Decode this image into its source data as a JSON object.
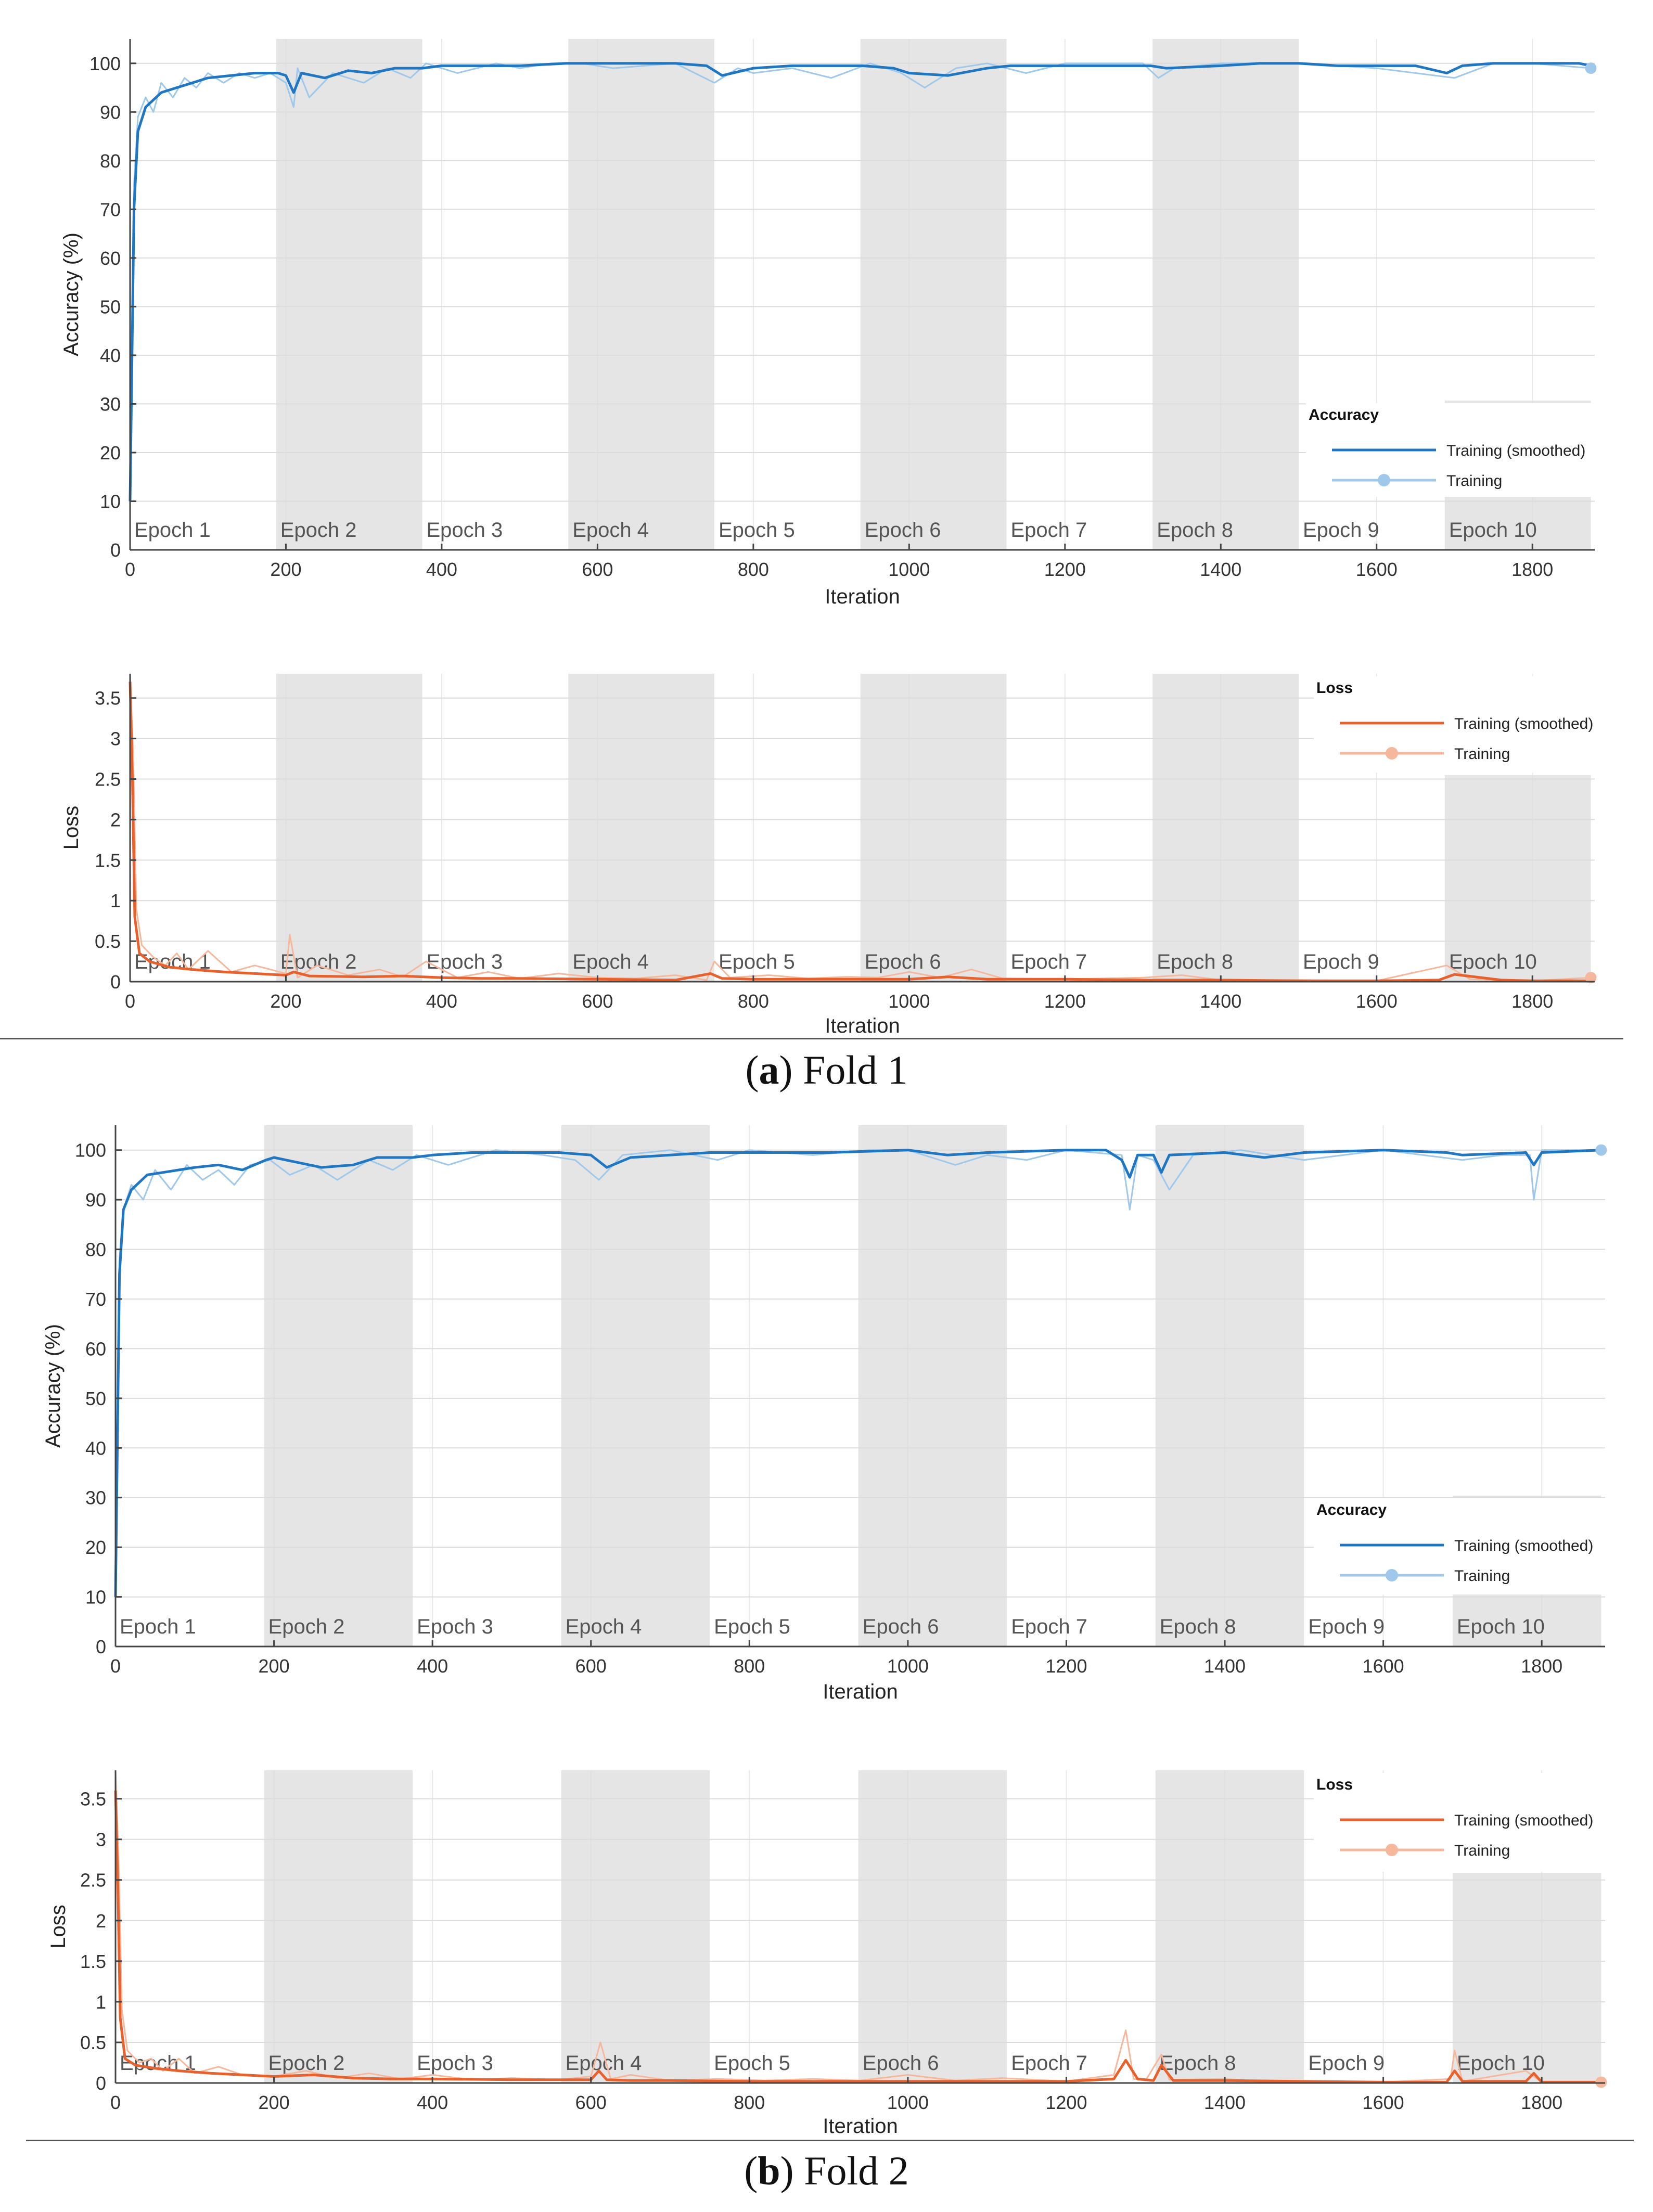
{
  "colors": {
    "accuracy_smoothed": "#1f77c4",
    "accuracy_raw": "#9fc8ea",
    "loss_smoothed": "#e8612c",
    "loss_raw": "#f6b89c",
    "epoch_band": "#e5e5e5",
    "grid": "#dcdcdc"
  },
  "captions": [
    {
      "letter": "a",
      "text": ") Fold 1"
    },
    {
      "letter": "b",
      "text": ") Fold 2"
    }
  ],
  "chart_data": [
    {
      "type": "line",
      "fold": "a",
      "xlabel": "Iteration",
      "ylabel": "Accuracy (%)",
      "xlim": [
        0,
        1880
      ],
      "ylim": [
        0,
        105
      ],
      "xticks": [
        "0",
        "200",
        "400",
        "600",
        "800",
        "1000",
        "1200",
        "1400",
        "1600",
        "1800"
      ],
      "yticks": [
        "0",
        "10",
        "20",
        "30",
        "40",
        "50",
        "60",
        "70",
        "80",
        "90",
        "100"
      ],
      "grid": true,
      "legend": {
        "title": "Accuracy",
        "placement": "bottom-right",
        "entries": [
          "Training (smoothed)",
          "Training"
        ]
      },
      "epochs": {
        "labels": [
          "Epoch 1",
          "Epoch 2",
          "Epoch 3",
          "Epoch 4",
          "Epoch 5",
          "Epoch 6",
          "Epoch 7",
          "Epoch 8",
          "Epoch 9",
          "Epoch 10"
        ],
        "length": 187.5
      },
      "series": [
        {
          "name": "Training (smoothed)",
          "x": [
            0,
            5,
            10,
            20,
            40,
            60,
            80,
            100,
            130,
            160,
            190,
            200,
            210,
            220,
            250,
            280,
            310,
            340,
            375,
            400,
            450,
            500,
            560,
            600,
            650,
            700,
            740,
            760,
            800,
            850,
            900,
            940,
            980,
            1000,
            1050,
            1100,
            1130,
            1200,
            1250,
            1310,
            1330,
            1400,
            1450,
            1500,
            1550,
            1600,
            1650,
            1690,
            1710,
            1750,
            1800,
            1860,
            1875
          ],
          "y": [
            10,
            70,
            86,
            91,
            94,
            95,
            96,
            97,
            97.5,
            98,
            98,
            97.5,
            94,
            98,
            97,
            98.5,
            98,
            99,
            99,
            99.5,
            99.5,
            99.5,
            100,
            100,
            100,
            100,
            99.5,
            97.5,
            99,
            99.5,
            99.5,
            99.5,
            99,
            98,
            97.5,
            99,
            99.5,
            99.5,
            99.5,
            99.5,
            99,
            99.5,
            100,
            100,
            99.5,
            99.5,
            99.5,
            98,
            99.5,
            100,
            100,
            100,
            99.5
          ]
        },
        {
          "name": "Training",
          "x": [
            0,
            5,
            10,
            20,
            30,
            40,
            55,
            70,
            85,
            100,
            120,
            140,
            160,
            180,
            200,
            210,
            215,
            230,
            260,
            300,
            330,
            360,
            380,
            420,
            470,
            500,
            540,
            580,
            620,
            700,
            750,
            780,
            800,
            850,
            900,
            950,
            990,
            1020,
            1060,
            1100,
            1150,
            1200,
            1300,
            1320,
            1340,
            1400,
            1500,
            1600,
            1700,
            1750,
            1800,
            1875
          ],
          "y": [
            10,
            75,
            89,
            93,
            90,
            96,
            93,
            97,
            95,
            98,
            96,
            98,
            97,
            98,
            96,
            91,
            99,
            93,
            98,
            96,
            99,
            97,
            100,
            98,
            100,
            99,
            100,
            100,
            99,
            100,
            96,
            99,
            98,
            99,
            97,
            100,
            98,
            95,
            99,
            100,
            98,
            100,
            100,
            97,
            99,
            100,
            100,
            99,
            97,
            100,
            100,
            99
          ]
        }
      ]
    },
    {
      "type": "line",
      "fold": "a",
      "xlabel": "Iteration",
      "ylabel": "Loss",
      "xlim": [
        0,
        1880
      ],
      "ylim": [
        0,
        3.8
      ],
      "xticks": [
        "0",
        "200",
        "400",
        "600",
        "800",
        "1000",
        "1200",
        "1400",
        "1600",
        "1800"
      ],
      "yticks": [
        "0",
        "0.5",
        "1",
        "1.5",
        "2",
        "2.5",
        "3",
        "3.5"
      ],
      "grid": true,
      "legend": {
        "title": "Loss",
        "placement": "top-right",
        "entries": [
          "Training (smoothed)",
          "Training"
        ]
      },
      "epochs": {
        "labels": [
          "Epoch 1",
          "Epoch 2",
          "Epoch 3",
          "Epoch 4",
          "Epoch 5",
          "Epoch 6",
          "Epoch 7",
          "Epoch 8",
          "Epoch 9",
          "Epoch 10"
        ],
        "length": 187.5
      },
      "series": [
        {
          "name": "Training (smoothed)",
          "x": [
            0,
            3,
            6,
            12,
            25,
            50,
            80,
            120,
            160,
            200,
            210,
            230,
            300,
            350,
            400,
            450,
            500,
            600,
            700,
            745,
            760,
            800,
            900,
            1000,
            1050,
            1100,
            1200,
            1300,
            1400,
            1500,
            1600,
            1680,
            1700,
            1760,
            1800,
            1875
          ],
          "y": [
            3.7,
            2.5,
            0.8,
            0.35,
            0.25,
            0.18,
            0.15,
            0.12,
            0.1,
            0.08,
            0.12,
            0.07,
            0.06,
            0.07,
            0.05,
            0.04,
            0.04,
            0.03,
            0.02,
            0.1,
            0.04,
            0.03,
            0.03,
            0.03,
            0.06,
            0.03,
            0.03,
            0.02,
            0.02,
            0.01,
            0.01,
            0.02,
            0.09,
            0.02,
            0.01,
            0.01
          ]
        },
        {
          "name": "Training",
          "x": [
            0,
            4,
            8,
            15,
            30,
            45,
            60,
            75,
            100,
            130,
            160,
            200,
            205,
            215,
            240,
            280,
            320,
            350,
            380,
            420,
            460,
            500,
            550,
            600,
            650,
            700,
            740,
            750,
            770,
            820,
            870,
            920,
            960,
            1000,
            1040,
            1080,
            1120,
            1200,
            1300,
            1350,
            1400,
            1500,
            1600,
            1690,
            1720,
            1800,
            1875
          ],
          "y": [
            3.8,
            2.8,
            0.9,
            0.45,
            0.3,
            0.2,
            0.35,
            0.15,
            0.38,
            0.12,
            0.2,
            0.1,
            0.58,
            0.05,
            0.2,
            0.08,
            0.15,
            0.06,
            0.25,
            0.05,
            0.12,
            0.04,
            0.1,
            0.05,
            0.04,
            0.08,
            0.02,
            0.25,
            0.05,
            0.08,
            0.04,
            0.06,
            0.05,
            0.12,
            0.05,
            0.15,
            0.04,
            0.03,
            0.05,
            0.08,
            0.02,
            0.02,
            0.01,
            0.2,
            0.03,
            0.01,
            0.05
          ]
        }
      ]
    },
    {
      "type": "line",
      "fold": "b",
      "xlabel": "Iteration",
      "ylabel": "Accuracy (%)",
      "xlim": [
        0,
        1880
      ],
      "ylim": [
        0,
        105
      ],
      "xticks": [
        "0",
        "200",
        "400",
        "600",
        "800",
        "1000",
        "1200",
        "1400",
        "1600",
        "1800"
      ],
      "yticks": [
        "0",
        "10",
        "20",
        "30",
        "40",
        "50",
        "60",
        "70",
        "80",
        "90",
        "100"
      ],
      "grid": true,
      "legend": {
        "title": "Accuracy",
        "placement": "bottom-right",
        "entries": [
          "Training (smoothed)",
          "Training"
        ]
      },
      "epochs": {
        "labels": [
          "Epoch 1",
          "Epoch 2",
          "Epoch 3",
          "Epoch 4",
          "Epoch 5",
          "Epoch 6",
          "Epoch 7",
          "Epoch 8",
          "Epoch 9",
          "Epoch 10"
        ],
        "length": 187.5
      },
      "series": [
        {
          "name": "Training (smoothed)",
          "x": [
            0,
            5,
            10,
            20,
            40,
            60,
            80,
            100,
            130,
            160,
            190,
            200,
            230,
            260,
            300,
            330,
            375,
            400,
            450,
            500,
            560,
            600,
            620,
            650,
            700,
            750,
            800,
            900,
            1000,
            1050,
            1100,
            1200,
            1250,
            1270,
            1280,
            1290,
            1310,
            1320,
            1330,
            1400,
            1450,
            1500,
            1600,
            1680,
            1700,
            1780,
            1790,
            1800,
            1875
          ],
          "y": [
            10,
            75,
            88,
            92,
            95,
            95.5,
            96,
            96.5,
            97,
            96,
            98,
            98.5,
            97.5,
            96.5,
            97,
            98.5,
            98.5,
            99,
            99.5,
            99.5,
            99.5,
            99,
            96.5,
            98.5,
            99,
            99.5,
            99.5,
            99.5,
            100,
            99,
            99.5,
            100,
            100,
            98,
            94.5,
            99,
            99,
            95.5,
            99,
            99.5,
            98.5,
            99.5,
            100,
            99.5,
            99,
            99.5,
            97,
            99.5,
            100
          ]
        },
        {
          "name": "Training",
          "x": [
            0,
            5,
            10,
            20,
            35,
            50,
            70,
            90,
            110,
            130,
            150,
            170,
            195,
            220,
            250,
            280,
            320,
            350,
            380,
            420,
            480,
            540,
            580,
            610,
            640,
            700,
            760,
            800,
            880,
            950,
            1000,
            1060,
            1100,
            1150,
            1200,
            1270,
            1280,
            1290,
            1310,
            1330,
            1360,
            1420,
            1500,
            1600,
            1700,
            1750,
            1785,
            1790,
            1800,
            1875
          ],
          "y": [
            10,
            78,
            88,
            93,
            90,
            96,
            92,
            97,
            94,
            96,
            93,
            97,
            98,
            95,
            97,
            94,
            98,
            96,
            99,
            97,
            100,
            99,
            98,
            94,
            99,
            100,
            98,
            100,
            99,
            100,
            100,
            97,
            99,
            98,
            100,
            99,
            88,
            99,
            98,
            92,
            99,
            100,
            98,
            100,
            98,
            99,
            99,
            90,
            100,
            100
          ]
        }
      ]
    },
    {
      "type": "line",
      "fold": "b",
      "xlabel": "Iteration",
      "ylabel": "Loss",
      "xlim": [
        0,
        1880
      ],
      "ylim": [
        0,
        3.85
      ],
      "xticks": [
        "0",
        "200",
        "400",
        "600",
        "800",
        "1000",
        "1200",
        "1400",
        "1600",
        "1800"
      ],
      "yticks": [
        "0",
        "0.5",
        "1",
        "1.5",
        "2",
        "2.5",
        "3",
        "3.5"
      ],
      "grid": true,
      "legend": {
        "title": "Loss",
        "placement": "top-right",
        "entries": [
          "Training (smoothed)",
          "Training"
        ]
      },
      "epochs": {
        "labels": [
          "Epoch 1",
          "Epoch 2",
          "Epoch 3",
          "Epoch 4",
          "Epoch 5",
          "Epoch 6",
          "Epoch 7",
          "Epoch 8",
          "Epoch 9",
          "Epoch 10"
        ],
        "length": 187.5
      },
      "series": [
        {
          "name": "Training (smoothed)",
          "x": [
            0,
            3,
            6,
            12,
            25,
            50,
            80,
            120,
            160,
            200,
            250,
            300,
            350,
            400,
            500,
            600,
            610,
            620,
            650,
            700,
            800,
            900,
            1000,
            1100,
            1200,
            1260,
            1275,
            1290,
            1310,
            1320,
            1335,
            1400,
            1500,
            1600,
            1680,
            1690,
            1700,
            1780,
            1790,
            1800,
            1875
          ],
          "y": [
            3.6,
            2.4,
            0.8,
            0.3,
            0.22,
            0.18,
            0.15,
            0.12,
            0.1,
            0.08,
            0.1,
            0.06,
            0.05,
            0.05,
            0.04,
            0.04,
            0.15,
            0.04,
            0.03,
            0.03,
            0.02,
            0.02,
            0.02,
            0.02,
            0.02,
            0.05,
            0.28,
            0.05,
            0.03,
            0.22,
            0.03,
            0.03,
            0.02,
            0.01,
            0.01,
            0.15,
            0.02,
            0.02,
            0.12,
            0.01,
            0.01
          ]
        },
        {
          "name": "Training",
          "x": [
            0,
            4,
            8,
            15,
            30,
            45,
            60,
            80,
            100,
            130,
            160,
            200,
            240,
            280,
            320,
            360,
            400,
            450,
            500,
            560,
            600,
            612,
            625,
            650,
            700,
            760,
            820,
            880,
            940,
            1000,
            1060,
            1120,
            1200,
            1260,
            1275,
            1285,
            1300,
            1320,
            1330,
            1400,
            1450,
            1500,
            1600,
            1685,
            1690,
            1700,
            1780,
            1800,
            1875
          ],
          "y": [
            3.85,
            2.7,
            0.9,
            0.4,
            0.25,
            0.3,
            0.15,
            0.3,
            0.12,
            0.2,
            0.1,
            0.08,
            0.15,
            0.06,
            0.12,
            0.05,
            0.1,
            0.04,
            0.06,
            0.04,
            0.08,
            0.5,
            0.05,
            0.1,
            0.03,
            0.05,
            0.03,
            0.05,
            0.03,
            0.1,
            0.03,
            0.06,
            0.02,
            0.1,
            0.65,
            0.05,
            0.03,
            0.35,
            0.04,
            0.05,
            0.02,
            0.02,
            0.01,
            0.05,
            0.4,
            0.02,
            0.15,
            0.01,
            0.01
          ]
        }
      ]
    }
  ]
}
